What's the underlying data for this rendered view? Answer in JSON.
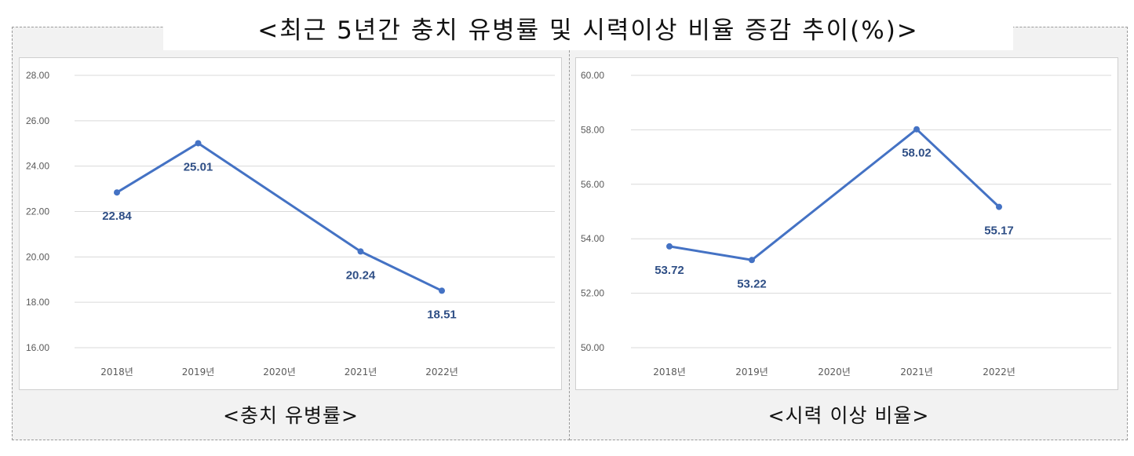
{
  "title": "<최근 5년간 충치 유병률 및 시력이상 비율 증감 추이(%)>",
  "chart_data": [
    {
      "type": "line",
      "caption": "<충치 유병률>",
      "categories": [
        "2018년",
        "2019년",
        "2020년",
        "2021년",
        "2022년"
      ],
      "values": [
        22.84,
        25.01,
        null,
        20.24,
        18.51
      ],
      "value_labels": [
        "22.84",
        "25.01",
        null,
        "20.24",
        "18.51"
      ],
      "label_position": [
        "below",
        "below",
        null,
        "below",
        "below"
      ],
      "y_ticks": [
        "16.00",
        "18.00",
        "20.00",
        "22.00",
        "24.00",
        "26.00",
        "28.00"
      ],
      "ylim": [
        16,
        28
      ],
      "grid": true,
      "color": "#4472c4",
      "label_color": "#2f4f86"
    },
    {
      "type": "line",
      "caption": "<시력 이상 비율>",
      "categories": [
        "2018년",
        "2019년",
        "2020년",
        "2021년",
        "2022년"
      ],
      "values": [
        53.72,
        53.22,
        null,
        58.02,
        55.17
      ],
      "value_labels": [
        "53.72",
        "53.22",
        null,
        "58.02",
        "55.17"
      ],
      "label_position": [
        "below",
        "below",
        null,
        "below",
        "below"
      ],
      "y_ticks": [
        "50.00",
        "52.00",
        "54.00",
        "56.00",
        "58.00",
        "60.00"
      ],
      "ylim": [
        50,
        60
      ],
      "grid": true,
      "color": "#4472c4",
      "label_color": "#2f4f86"
    }
  ]
}
